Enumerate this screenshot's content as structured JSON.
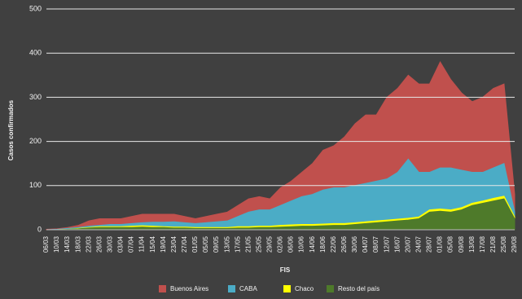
{
  "chart_data": {
    "type": "area",
    "stacked": true,
    "y_label": "Casos confirmados",
    "x_label": "FIS",
    "categories": [
      "06/03",
      "10/03",
      "14/03",
      "18/03",
      "22/03",
      "26/03",
      "30/03",
      "03/04",
      "07/04",
      "11/04",
      "15/04",
      "19/04",
      "23/04",
      "27/04",
      "01/05",
      "05/05",
      "09/05",
      "13/05",
      "17/05",
      "21/05",
      "25/05",
      "29/05",
      "02/06",
      "06/06",
      "10/06",
      "14/06",
      "18/06",
      "22/06",
      "26/06",
      "30/06",
      "04/07",
      "08/07",
      "12/07",
      "16/07",
      "20/07",
      "24/07",
      "28/07",
      "01/08",
      "05/08",
      "09/08",
      "13/08",
      "17/08",
      "21/08",
      "25/08",
      "29/08"
    ],
    "series": [
      {
        "name": "Buenos Aires",
        "color": "#c0504d",
        "values": [
          1,
          1,
          2,
          5,
          12,
          15,
          13,
          13,
          16,
          19,
          18,
          18,
          17,
          14,
          11,
          14,
          17,
          20,
          25,
          30,
          30,
          25,
          40,
          45,
          55,
          70,
          90,
          95,
          115,
          140,
          155,
          150,
          185,
          190,
          190,
          200,
          200,
          240,
          200,
          175,
          160,
          170,
          180,
          180,
          40
        ]
      },
      {
        "name": "CABA",
        "color": "#4bacc6",
        "values": [
          0,
          1,
          2,
          2,
          3,
          3,
          5,
          5,
          6,
          7,
          9,
          10,
          12,
          10,
          9,
          11,
          13,
          15,
          23,
          33,
          37,
          37,
          45,
          54,
          63,
          68,
          77,
          81,
          81,
          84,
          87,
          90,
          93,
          106,
          134,
          101,
          85,
          93,
          95,
          85,
          70,
          65,
          69,
          74,
          11
        ]
      },
      {
        "name": "Chaco",
        "color": "#ffff00",
        "values": [
          0,
          0,
          0,
          1,
          1,
          2,
          2,
          2,
          3,
          3,
          3,
          2,
          2,
          2,
          2,
          2,
          2,
          2,
          3,
          3,
          3,
          3,
          4,
          4,
          4,
          4,
          4,
          4,
          4,
          4,
          4,
          4,
          4,
          4,
          4,
          4,
          5,
          5,
          5,
          5,
          5,
          5,
          6,
          6,
          4
        ]
      },
      {
        "name": "Resto del país",
        "color": "#4e7a2a",
        "values": [
          0,
          0,
          1,
          2,
          4,
          5,
          5,
          5,
          5,
          6,
          5,
          5,
          4,
          4,
          3,
          3,
          3,
          3,
          4,
          4,
          5,
          5,
          6,
          7,
          8,
          8,
          9,
          10,
          10,
          12,
          14,
          16,
          18,
          20,
          22,
          25,
          40,
          42,
          40,
          45,
          55,
          60,
          65,
          70,
          25
        ]
      }
    ],
    "ylim": [
      0,
      500
    ],
    "yticks": [
      0,
      100,
      200,
      300,
      400,
      500
    ],
    "grid": true
  }
}
